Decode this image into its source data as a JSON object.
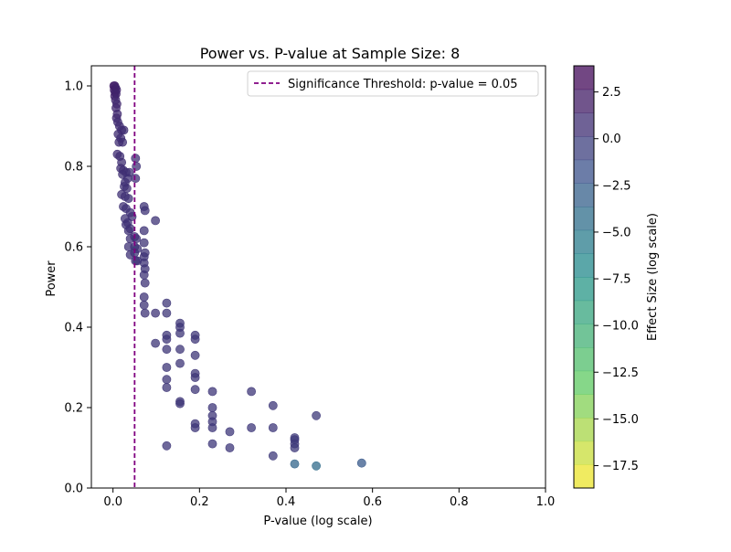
{
  "chart_data": {
    "type": "scatter",
    "title": "Power vs. P-value at Sample Size: 8",
    "xlabel": "P-value (log scale)",
    "ylabel": "Power",
    "xlim": [
      -0.05,
      1.0
    ],
    "ylim": [
      0.0,
      1.05
    ],
    "x_ticks": [
      0.0,
      0.2,
      0.4,
      0.6,
      0.8,
      1.0
    ],
    "x_tick_labels": [
      "0.0",
      "0.2",
      "0.4",
      "0.6",
      "0.8",
      "1.0"
    ],
    "y_ticks": [
      0.0,
      0.2,
      0.4,
      0.6,
      0.8,
      1.0
    ],
    "y_tick_labels": [
      "0.0",
      "0.2",
      "0.4",
      "0.6",
      "0.8",
      "1.0"
    ],
    "grid": false,
    "threshold": {
      "x": 0.05,
      "color": "#800080",
      "style": "dashed",
      "legend_label": "Significance Threshold: p-value = 0.05"
    },
    "legend_placement": "top-right",
    "colorbar": {
      "label": "Effect Size (log scale)",
      "range": [
        -18.7,
        3.9
      ],
      "ticks": [
        2.5,
        0.0,
        -2.5,
        -5.0,
        -7.5,
        -10.0,
        -12.5,
        -15.0,
        -17.5
      ],
      "tick_labels": [
        "2.5",
        "0.0",
        "−2.5",
        "−5.0",
        "−7.5",
        "−10.0",
        "−12.5",
        "−15.0",
        "−17.5"
      ],
      "colormap": "viridis_r",
      "alpha": 0.75
    },
    "points": [
      {
        "x": 0.002,
        "y": 1.0,
        "c": 2.0
      },
      {
        "x": 0.004,
        "y": 1.0,
        "c": 1.8
      },
      {
        "x": 0.006,
        "y": 0.995,
        "c": 1.6
      },
      {
        "x": 0.003,
        "y": 0.99,
        "c": 1.9
      },
      {
        "x": 0.008,
        "y": 0.99,
        "c": 1.5
      },
      {
        "x": 0.005,
        "y": 0.985,
        "c": 1.7
      },
      {
        "x": 0.007,
        "y": 0.98,
        "c": 1.4
      },
      {
        "x": 0.004,
        "y": 0.975,
        "c": 1.6
      },
      {
        "x": 0.006,
        "y": 0.965,
        "c": 1.3
      },
      {
        "x": 0.009,
        "y": 0.955,
        "c": 1.2
      },
      {
        "x": 0.007,
        "y": 0.945,
        "c": 1.3
      },
      {
        "x": 0.01,
        "y": 0.93,
        "c": 1.1
      },
      {
        "x": 0.008,
        "y": 0.92,
        "c": 1.2
      },
      {
        "x": 0.011,
        "y": 0.91,
        "c": 1.0
      },
      {
        "x": 0.015,
        "y": 0.9,
        "c": 1.0
      },
      {
        "x": 0.02,
        "y": 0.89,
        "c": 0.9
      },
      {
        "x": 0.025,
        "y": 0.89,
        "c": 0.9
      },
      {
        "x": 0.012,
        "y": 0.88,
        "c": 1.0
      },
      {
        "x": 0.018,
        "y": 0.87,
        "c": 0.9
      },
      {
        "x": 0.014,
        "y": 0.86,
        "c": 0.9
      },
      {
        "x": 0.022,
        "y": 0.86,
        "c": 0.8
      },
      {
        "x": 0.01,
        "y": 0.83,
        "c": 0.9
      },
      {
        "x": 0.016,
        "y": 0.825,
        "c": 0.8
      },
      {
        "x": 0.02,
        "y": 0.81,
        "c": 0.8
      },
      {
        "x": 0.018,
        "y": 0.795,
        "c": 0.8
      },
      {
        "x": 0.024,
        "y": 0.79,
        "c": 0.7
      },
      {
        "x": 0.03,
        "y": 0.785,
        "c": 0.7
      },
      {
        "x": 0.038,
        "y": 0.785,
        "c": 0.6
      },
      {
        "x": 0.022,
        "y": 0.78,
        "c": 0.7
      },
      {
        "x": 0.034,
        "y": 0.77,
        "c": 0.6
      },
      {
        "x": 0.028,
        "y": 0.76,
        "c": 0.6
      },
      {
        "x": 0.026,
        "y": 0.75,
        "c": 0.6
      },
      {
        "x": 0.032,
        "y": 0.745,
        "c": 0.6
      },
      {
        "x": 0.052,
        "y": 0.82,
        "c": 0.6
      },
      {
        "x": 0.054,
        "y": 0.8,
        "c": 0.5
      },
      {
        "x": 0.052,
        "y": 0.77,
        "c": 0.5
      },
      {
        "x": 0.02,
        "y": 0.73,
        "c": 0.6
      },
      {
        "x": 0.028,
        "y": 0.725,
        "c": 0.6
      },
      {
        "x": 0.036,
        "y": 0.72,
        "c": 0.5
      },
      {
        "x": 0.024,
        "y": 0.7,
        "c": 0.6
      },
      {
        "x": 0.03,
        "y": 0.695,
        "c": 0.5
      },
      {
        "x": 0.072,
        "y": 0.7,
        "c": 0.4
      },
      {
        "x": 0.074,
        "y": 0.69,
        "c": 0.4
      },
      {
        "x": 0.04,
        "y": 0.685,
        "c": 0.5
      },
      {
        "x": 0.044,
        "y": 0.675,
        "c": 0.5
      },
      {
        "x": 0.028,
        "y": 0.67,
        "c": 0.5
      },
      {
        "x": 0.034,
        "y": 0.66,
        "c": 0.5
      },
      {
        "x": 0.098,
        "y": 0.665,
        "c": 0.4
      },
      {
        "x": 0.03,
        "y": 0.655,
        "c": 0.5
      },
      {
        "x": 0.04,
        "y": 0.645,
        "c": 0.5
      },
      {
        "x": 0.036,
        "y": 0.64,
        "c": 0.5
      },
      {
        "x": 0.05,
        "y": 0.625,
        "c": 0.5
      },
      {
        "x": 0.054,
        "y": 0.62,
        "c": 0.4
      },
      {
        "x": 0.04,
        "y": 0.62,
        "c": 0.5
      },
      {
        "x": 0.072,
        "y": 0.64,
        "c": 0.4
      },
      {
        "x": 0.072,
        "y": 0.61,
        "c": 0.4
      },
      {
        "x": 0.036,
        "y": 0.6,
        "c": 0.5
      },
      {
        "x": 0.05,
        "y": 0.6,
        "c": 0.4
      },
      {
        "x": 0.056,
        "y": 0.595,
        "c": 0.4
      },
      {
        "x": 0.04,
        "y": 0.58,
        "c": 0.5
      },
      {
        "x": 0.05,
        "y": 0.585,
        "c": 0.4
      },
      {
        "x": 0.074,
        "y": 0.585,
        "c": 0.4
      },
      {
        "x": 0.072,
        "y": 0.575,
        "c": 0.4
      },
      {
        "x": 0.052,
        "y": 0.565,
        "c": 0.4
      },
      {
        "x": 0.056,
        "y": 0.565,
        "c": 0.4
      },
      {
        "x": 0.072,
        "y": 0.56,
        "c": 0.4
      },
      {
        "x": 0.074,
        "y": 0.545,
        "c": 0.4
      },
      {
        "x": 0.072,
        "y": 0.53,
        "c": 0.4
      },
      {
        "x": 0.074,
        "y": 0.51,
        "c": 0.4
      },
      {
        "x": 0.072,
        "y": 0.475,
        "c": 0.4
      },
      {
        "x": 0.072,
        "y": 0.455,
        "c": 0.4
      },
      {
        "x": 0.074,
        "y": 0.435,
        "c": 0.4
      },
      {
        "x": 0.098,
        "y": 0.435,
        "c": 0.4
      },
      {
        "x": 0.124,
        "y": 0.46,
        "c": 0.3
      },
      {
        "x": 0.124,
        "y": 0.435,
        "c": 0.3
      },
      {
        "x": 0.155,
        "y": 0.41,
        "c": 0.3
      },
      {
        "x": 0.155,
        "y": 0.4,
        "c": 0.3
      },
      {
        "x": 0.155,
        "y": 0.385,
        "c": 0.3
      },
      {
        "x": 0.124,
        "y": 0.38,
        "c": 0.3
      },
      {
        "x": 0.124,
        "y": 0.37,
        "c": 0.3
      },
      {
        "x": 0.19,
        "y": 0.38,
        "c": 0.3
      },
      {
        "x": 0.19,
        "y": 0.37,
        "c": 0.3
      },
      {
        "x": 0.098,
        "y": 0.36,
        "c": 0.3
      },
      {
        "x": 0.124,
        "y": 0.345,
        "c": 0.3
      },
      {
        "x": 0.155,
        "y": 0.345,
        "c": 0.3
      },
      {
        "x": 0.19,
        "y": 0.33,
        "c": 0.3
      },
      {
        "x": 0.155,
        "y": 0.31,
        "c": 0.3
      },
      {
        "x": 0.124,
        "y": 0.3,
        "c": 0.3
      },
      {
        "x": 0.19,
        "y": 0.285,
        "c": 0.3
      },
      {
        "x": 0.19,
        "y": 0.275,
        "c": 0.3
      },
      {
        "x": 0.124,
        "y": 0.27,
        "c": 0.3
      },
      {
        "x": 0.124,
        "y": 0.25,
        "c": 0.3
      },
      {
        "x": 0.19,
        "y": 0.245,
        "c": 0.3
      },
      {
        "x": 0.23,
        "y": 0.24,
        "c": 0.2
      },
      {
        "x": 0.32,
        "y": 0.24,
        "c": 0.2
      },
      {
        "x": 0.155,
        "y": 0.215,
        "c": 0.3
      },
      {
        "x": 0.155,
        "y": 0.21,
        "c": 0.3
      },
      {
        "x": 0.23,
        "y": 0.2,
        "c": 0.2
      },
      {
        "x": 0.37,
        "y": 0.205,
        "c": 0.1
      },
      {
        "x": 0.23,
        "y": 0.18,
        "c": 0.2
      },
      {
        "x": 0.47,
        "y": 0.18,
        "c": 0.0
      },
      {
        "x": 0.19,
        "y": 0.16,
        "c": 0.2
      },
      {
        "x": 0.23,
        "y": 0.165,
        "c": 0.2
      },
      {
        "x": 0.19,
        "y": 0.15,
        "c": 0.2
      },
      {
        "x": 0.23,
        "y": 0.15,
        "c": 0.2
      },
      {
        "x": 0.32,
        "y": 0.15,
        "c": 0.1
      },
      {
        "x": 0.37,
        "y": 0.15,
        "c": 0.1
      },
      {
        "x": 0.27,
        "y": 0.14,
        "c": 0.1
      },
      {
        "x": 0.42,
        "y": 0.125,
        "c": 0.0
      },
      {
        "x": 0.42,
        "y": 0.12,
        "c": 0.0
      },
      {
        "x": 0.23,
        "y": 0.11,
        "c": 0.1
      },
      {
        "x": 0.42,
        "y": 0.11,
        "c": 0.0
      },
      {
        "x": 0.124,
        "y": 0.105,
        "c": 0.2
      },
      {
        "x": 0.27,
        "y": 0.1,
        "c": 0.1
      },
      {
        "x": 0.42,
        "y": 0.1,
        "c": 0.0
      },
      {
        "x": 0.37,
        "y": 0.08,
        "c": 0.0
      },
      {
        "x": 0.42,
        "y": 0.06,
        "c": -3.5
      },
      {
        "x": 0.47,
        "y": 0.055,
        "c": -4.0
      },
      {
        "x": 0.575,
        "y": 0.062,
        "c": -2.5
      }
    ]
  }
}
